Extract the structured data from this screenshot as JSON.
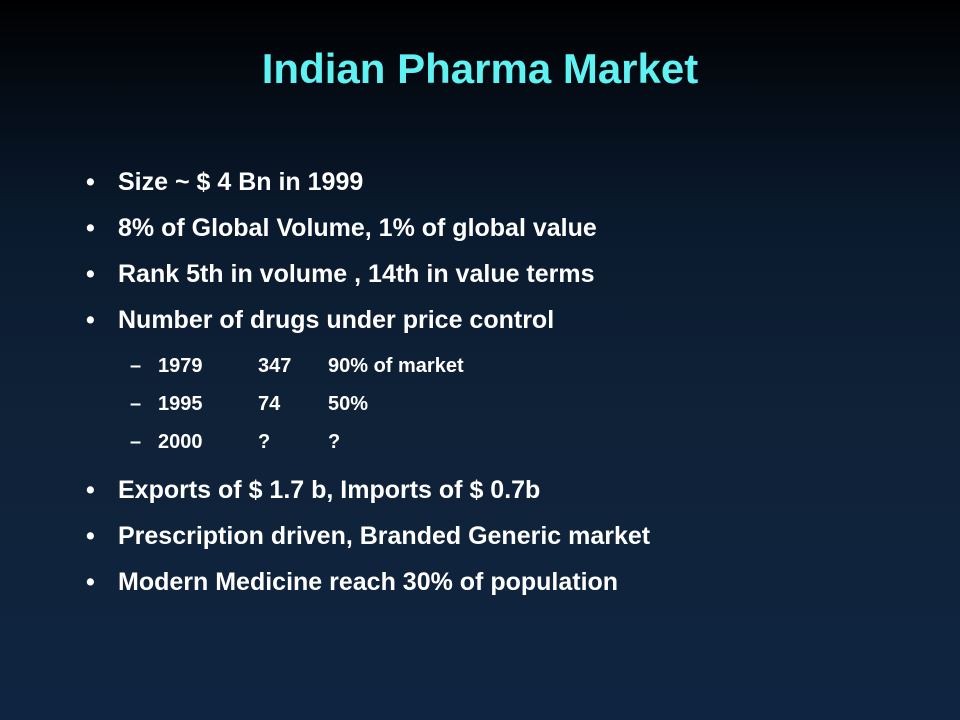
{
  "slide": {
    "title": "Indian Pharma Market",
    "bullets_top": [
      "Size ~ $ 4 Bn in 1999",
      "8% of Global Volume, 1% of global value",
      "Rank 5th in volume , 14th in value terms",
      "Number of drugs under price control"
    ],
    "price_control_rows": [
      {
        "year": "1979",
        "count": "347",
        "share": "90% of market"
      },
      {
        "year": "1995",
        "count": "74",
        "share": "50%"
      },
      {
        "year": "2000",
        "count": "?",
        "share": "?"
      }
    ],
    "bullets_bottom": [
      "Exports of $ 1.7 b, Imports of $ 0.7b",
      "Prescription driven, Branded Generic market",
      "Modern Medicine reach 30% of population"
    ],
    "bullet_glyph": "•",
    "dash_glyph": "–"
  },
  "colors": {
    "title": "#5ef2f2",
    "text": "#ffffff",
    "background": "#0f2238"
  }
}
